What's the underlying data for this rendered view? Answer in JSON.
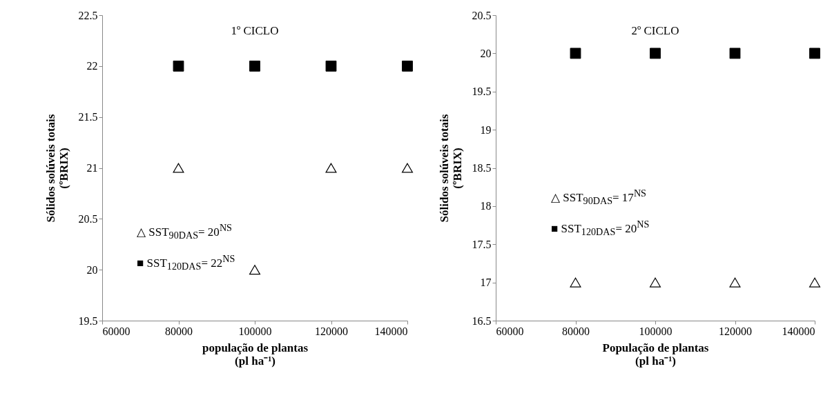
{
  "chart_data": [
    {
      "type": "scatter",
      "title": "1º CICLO",
      "xlabel": "população  de plantas\n(pl ha⁻¹)",
      "ylabel": "Sólidos solúveis totais\n(ºBRIX)",
      "x": [
        80000,
        100000,
        120000,
        140000
      ],
      "series": [
        {
          "color": "#000000",
          "marker": "triangle",
          "values": [
            21,
            20,
            21,
            21
          ]
        },
        {
          "color": "#000000",
          "marker": "square",
          "values": [
            22,
            22,
            22,
            22
          ]
        }
      ],
      "xlim": [
        60000,
        140000
      ],
      "xticks": [
        60000,
        80000,
        100000,
        120000,
        140000
      ],
      "ylim": [
        19.5,
        22.5
      ],
      "yticks": [
        19.5,
        20,
        20.5,
        21,
        21.5,
        22,
        22.5
      ],
      "grid": false,
      "annotations": [
        "△ SST$_{90DAS}$= 20$^{NS}$",
        "■ SST$_{120DAS}$= 22$^{NS}$"
      ]
    },
    {
      "type": "scatter",
      "title": "2º CICLO",
      "xlabel": "População  de plantas\n(pl ha⁻¹)",
      "ylabel": "Sólidos solúveis totais\n(ºBRIX)",
      "x": [
        80000,
        100000,
        120000,
        140000
      ],
      "series": [
        {
          "color": "#000000",
          "marker": "triangle",
          "values": [
            17,
            17,
            17,
            17
          ]
        },
        {
          "color": "#000000",
          "marker": "square",
          "values": [
            20,
            20,
            20,
            20
          ]
        }
      ],
      "xlim": [
        60000,
        140000
      ],
      "xticks": [
        60000,
        80000,
        100000,
        120000,
        140000
      ],
      "ylim": [
        16.5,
        20.5
      ],
      "yticks": [
        16.5,
        17,
        17.5,
        18,
        18.5,
        19,
        19.5,
        20,
        20.5
      ],
      "grid": false,
      "annotations": [
        "△ SST$_{90DAS}$= 17$^{NS}$",
        "■ SST$_{120DAS}$= 20$^{NS}$"
      ]
    }
  ]
}
